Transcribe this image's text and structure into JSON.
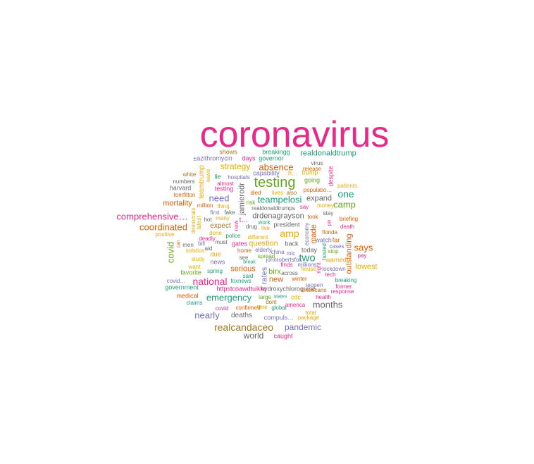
{
  "palette": {
    "magenta": "#e7298a",
    "green": "#66a61e",
    "orange": "#d95f02",
    "teal": "#1b9e77",
    "purple": "#7570b3",
    "gold": "#e6ab02",
    "brown": "#a6761d",
    "gray": "#666666"
  },
  "words": [
    {
      "text": "coronavirus",
      "color": "magenta"
    },
    {
      "text": "testing",
      "color": "green"
    },
    {
      "text": "realdonaldtrump",
      "color": "teal"
    },
    {
      "text": "absence",
      "color": "orange"
    },
    {
      "text": "strategy",
      "color": "gold"
    },
    {
      "text": "teampelosi",
      "color": "teal"
    },
    {
      "text": "need",
      "color": "purple"
    },
    {
      "text": "one",
      "color": "teal"
    },
    {
      "text": "comprehensive…",
      "color": "magenta"
    },
    {
      "text": "coordinated",
      "color": "orange"
    },
    {
      "text": "amp",
      "color": "gold"
    },
    {
      "text": "two",
      "color": "teal"
    },
    {
      "text": "says",
      "color": "orange"
    },
    {
      "text": "national",
      "color": "magenta"
    },
    {
      "text": "emergency",
      "color": "teal"
    },
    {
      "text": "months",
      "color": "gray"
    },
    {
      "text": "nearly",
      "color": "purple"
    },
    {
      "text": "realcandaceo",
      "color": "brown"
    },
    {
      "text": "pandemic",
      "color": "purple"
    },
    {
      "text": "world",
      "color": "gray"
    },
    {
      "text": "covid",
      "color": "green"
    },
    {
      "text": "mortality",
      "color": "orange"
    },
    {
      "text": "lowest",
      "color": "gold"
    },
    {
      "text": "serious",
      "color": "orange"
    },
    {
      "text": "birx",
      "color": "green"
    },
    {
      "text": "new",
      "color": "orange"
    },
    {
      "text": "drdenagrayson",
      "color": "gray"
    },
    {
      "text": "expand",
      "color": "gray"
    },
    {
      "text": "question",
      "color": "gold"
    },
    {
      "text": "outstanding",
      "color": "orange"
    },
    {
      "text": "made",
      "color": "orange"
    },
    {
      "text": "rates",
      "color": "purple"
    },
    {
      "text": "jamierodr",
      "color": "gray"
    },
    {
      "text": "teamtrump",
      "color": "gold"
    },
    {
      "text": "shows",
      "color": "brown"
    },
    {
      "text": "breakingg",
      "color": "teal"
    },
    {
      "text": "±azithromycin",
      "color": "purple"
    },
    {
      "text": "days",
      "color": "magenta"
    },
    {
      "text": "governor",
      "color": "teal"
    },
    {
      "text": "virus",
      "color": "gray"
    },
    {
      "text": "release",
      "color": "orange"
    },
    {
      "text": "capability",
      "color": "purple"
    },
    {
      "text": "h…",
      "color": "gold"
    },
    {
      "text": "trump",
      "color": "gold"
    },
    {
      "text": "despite",
      "color": "magenta"
    },
    {
      "text": "white",
      "color": "brown"
    },
    {
      "text": "wave",
      "color": "gold"
    },
    {
      "text": "lie",
      "color": "teal"
    },
    {
      "text": "hospitals",
      "color": "purple"
    },
    {
      "text": "going",
      "color": "green"
    },
    {
      "text": "patients",
      "color": "gold"
    },
    {
      "text": "numbers",
      "color": "gray"
    },
    {
      "text": "almost",
      "color": "magenta"
    },
    {
      "text": "harvard",
      "color": "gray"
    },
    {
      "text": "testing",
      "color": "magenta"
    },
    {
      "text": "died",
      "color": "orange"
    },
    {
      "text": "lives",
      "color": "gold"
    },
    {
      "text": "also",
      "color": "brown"
    },
    {
      "text": "populatio…",
      "color": "orange"
    },
    {
      "text": "tomfitton",
      "color": "orange"
    },
    {
      "text": "million",
      "color": "orange"
    },
    {
      "text": "thing",
      "color": "gold"
    },
    {
      "text": "risk",
      "color": "green"
    },
    {
      "text": "money",
      "color": "gold"
    },
    {
      "text": "realdonaldtrumps",
      "color": "gray"
    },
    {
      "text": "say",
      "color": "magenta"
    },
    {
      "text": "first",
      "color": "purple"
    },
    {
      "text": "fake",
      "color": "gray"
    },
    {
      "text": "stay",
      "color": "gray"
    },
    {
      "text": "democrats",
      "color": "gold"
    },
    {
      "text": "latest",
      "color": "gold"
    },
    {
      "text": "hot",
      "color": "gray"
    },
    {
      "text": "many",
      "color": "gold"
    },
    {
      "text": "now",
      "color": "magenta"
    },
    {
      "text": "t…",
      "color": "magenta"
    },
    {
      "text": "work",
      "color": "teal"
    },
    {
      "text": "took",
      "color": "orange"
    },
    {
      "text": "pix",
      "color": "magenta"
    },
    {
      "text": "briefing",
      "color": "orange"
    },
    {
      "text": "expect",
      "color": "brown"
    },
    {
      "text": "drug",
      "color": "gray"
    },
    {
      "text": "live",
      "color": "gold"
    },
    {
      "text": "president",
      "color": "gray"
    },
    {
      "text": "death",
      "color": "magenta"
    },
    {
      "text": "positive",
      "color": "gold"
    },
    {
      "text": "done",
      "color": "gold"
    },
    {
      "text": "police",
      "color": "teal"
    },
    {
      "text": "different",
      "color": "gold"
    },
    {
      "text": "economy",
      "color": "purple"
    },
    {
      "text": "florida",
      "color": "orange"
    },
    {
      "text": "deadly",
      "color": "magenta"
    },
    {
      "text": "men",
      "color": "gray"
    },
    {
      "text": "bill",
      "color": "purple"
    },
    {
      "text": "must",
      "color": "gray"
    },
    {
      "text": "gates",
      "color": "magenta"
    },
    {
      "text": "back",
      "color": "gray"
    },
    {
      "text": "watch",
      "color": "purple"
    },
    {
      "text": "far",
      "color": "orange"
    },
    {
      "text": "can",
      "color": "orange"
    },
    {
      "text": "solstice",
      "color": "gold"
    },
    {
      "text": "aid",
      "color": "gray"
    },
    {
      "text": "home",
      "color": "orange"
    },
    {
      "text": "elderly",
      "color": "purple"
    },
    {
      "text": "today",
      "color": "gray"
    },
    {
      "text": "hosted",
      "color": "teal"
    },
    {
      "text": "cases",
      "color": "purple"
    },
    {
      "text": "due",
      "color": "gold"
    },
    {
      "text": "china",
      "color": "purple"
    },
    {
      "text": "mic",
      "color": "purple"
    },
    {
      "text": "stop",
      "color": "green"
    },
    {
      "text": "pay",
      "color": "magenta"
    },
    {
      "text": "study",
      "color": "gold"
    },
    {
      "text": "spread",
      "color": "green"
    },
    {
      "text": "see",
      "color": "gray"
    },
    {
      "text": "warned",
      "color": "gold"
    },
    {
      "text": "news",
      "color": "purple"
    },
    {
      "text": "break",
      "color": "teal"
    },
    {
      "text": "johnrobertsfox",
      "color": "purple"
    },
    {
      "text": "millions",
      "color": "purple"
    },
    {
      "text": "want",
      "color": "gold"
    },
    {
      "text": "finds",
      "color": "magenta"
    },
    {
      "text": "house",
      "color": "gold"
    },
    {
      "text": "right",
      "color": "magenta"
    },
    {
      "text": "lockdown",
      "color": "purple"
    },
    {
      "text": "favorite",
      "color": "green"
    },
    {
      "text": "spring",
      "color": "teal"
    },
    {
      "text": "across",
      "color": "gray"
    },
    {
      "text": "tech",
      "color": "magenta"
    },
    {
      "text": "said",
      "color": "teal"
    },
    {
      "text": "covid…",
      "color": "purple"
    },
    {
      "text": "foxnews",
      "color": "teal"
    },
    {
      "text": "winter",
      "color": "orange"
    },
    {
      "text": "breaking",
      "color": "teal"
    },
    {
      "text": "government",
      "color": "teal"
    },
    {
      "text": "httpstcoawdtuikkc",
      "color": "magenta"
    },
    {
      "text": "hydroxychloroquine",
      "color": "gray"
    },
    {
      "text": "reopen",
      "color": "purple"
    },
    {
      "text": "former",
      "color": "magenta"
    },
    {
      "text": "americans",
      "color": "orange"
    },
    {
      "text": "response",
      "color": "magenta"
    },
    {
      "text": "medical",
      "color": "orange"
    },
    {
      "text": "large",
      "color": "green"
    },
    {
      "text": "states",
      "color": "teal"
    },
    {
      "text": "cdc",
      "color": "gold"
    },
    {
      "text": "health",
      "color": "magenta"
    },
    {
      "text": "claims",
      "color": "teal"
    },
    {
      "text": "dont",
      "color": "brown"
    },
    {
      "text": "america",
      "color": "magenta"
    },
    {
      "text": "covid",
      "color": "magenta"
    },
    {
      "text": "confirmed",
      "color": "orange"
    },
    {
      "text": "time",
      "color": "gold"
    },
    {
      "text": "global",
      "color": "teal"
    },
    {
      "text": "total",
      "color": "gold"
    },
    {
      "text": "deaths",
      "color": "gray"
    },
    {
      "text": "compuls…",
      "color": "purple"
    },
    {
      "text": "package",
      "color": "gold"
    },
    {
      "text": "caught",
      "color": "magenta"
    },
    {
      "text": "camp",
      "color": "green"
    },
    {
      "text": "…",
      "color": "teal"
    },
    {
      "text": "“",
      "color": "gray"
    }
  ]
}
